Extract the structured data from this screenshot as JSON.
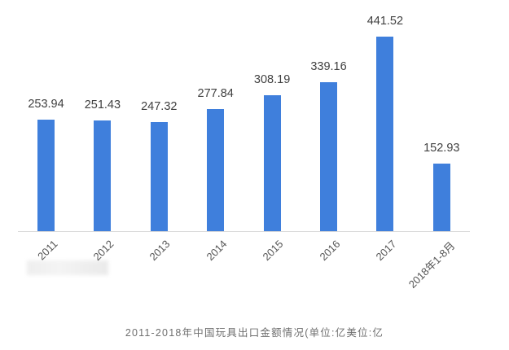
{
  "chart_data": {
    "type": "bar",
    "title": "2011-2018年中国玩具出口金额情况(单位:亿美位:亿",
    "xlabel": "",
    "ylabel": "",
    "categories": [
      "2011",
      "2012",
      "2013",
      "2014",
      "2015",
      "2016",
      "2017",
      "2018年1-8月"
    ],
    "values": [
      253.94,
      251.43,
      247.32,
      277.84,
      308.19,
      339.16,
      441.52,
      152.93
    ],
    "value_labels": [
      "253.94",
      "251.43",
      "247.32",
      "277.84",
      "308.19",
      "339.16",
      "441.52",
      "152.93"
    ],
    "ylim": [
      0,
      450
    ],
    "grid": false,
    "legend": null,
    "bar_color": "#3f7fdc"
  },
  "caption": "2011-2018年中国玩具出口金额情况(单位:亿美位:亿"
}
